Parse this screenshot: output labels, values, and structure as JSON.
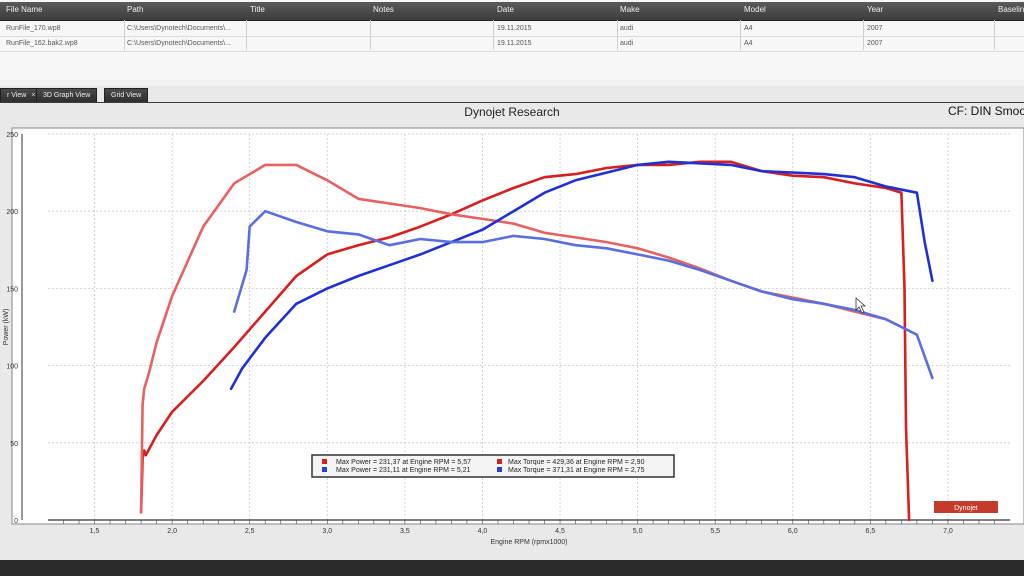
{
  "file_table": {
    "columns": [
      "File Name",
      "Path",
      "Title",
      "Notes",
      "Date",
      "Make",
      "Model",
      "Year",
      "Baseline"
    ],
    "rows": [
      [
        "RunFile_170.wp8",
        "C:\\Users\\Dynotech\\Documents\\...",
        "",
        "",
        "19.11.2015",
        "audi",
        "A4",
        "2007",
        ""
      ],
      [
        "RunFile_162.bak2.wp8",
        "C:\\Users\\Dynotech\\Documents\\...",
        "",
        "",
        "19.11.2015",
        "audi",
        "A4",
        "2007",
        ""
      ]
    ]
  },
  "tabs": [
    {
      "label": "r View",
      "active": true,
      "close": "×"
    },
    {
      "label": "3D Graph View",
      "active": false
    },
    {
      "label": "Grid View",
      "active": false
    }
  ],
  "graph": {
    "title": "Dynojet Research",
    "cf_label": "CF: DIN Smoo",
    "logo_text": "Dynojet"
  },
  "legend": [
    {
      "text": "Max Power = 231,37 at Engine RPM = 5,57",
      "color": "#d42020"
    },
    {
      "text": "Max Torque = 429,36 at Engine RPM = 2,90",
      "color": "#d42020"
    },
    {
      "text": "Max Power = 231,11 at Engine RPM = 5,21",
      "color": "#2c3fd8"
    },
    {
      "text": "Max Torque = 371,31 at Engine RPM = 2,75",
      "color": "#2c3fd8"
    }
  ],
  "chart_data": {
    "type": "line",
    "title": "Dynojet Research",
    "xlabel": "Engine RPM (rpmx1000)",
    "ylabel": "Power (kW)",
    "xlim": [
      1.2,
      7.4
    ],
    "ylim": [
      0,
      250
    ],
    "x_ticks": [
      "1,5",
      "2,0",
      "2,5",
      "3,0",
      "3,5",
      "4,0",
      "4,5",
      "5,0",
      "5,5",
      "6,0",
      "6,5",
      "7,0"
    ],
    "y_ticks": [
      "0",
      "50",
      "100",
      "150",
      "200",
      "250"
    ],
    "grid": true,
    "series": [
      {
        "color": "#d81e1e",
        "x": [
          1.8,
          1.81,
          1.82,
          1.83,
          1.9,
          2.0,
          2.2,
          2.4,
          2.6,
          2.8,
          3.0,
          3.2,
          3.4,
          3.6,
          3.8,
          4.0,
          4.2,
          4.4,
          4.6,
          4.8,
          5.0,
          5.2,
          5.4,
          5.6,
          5.8,
          6.0,
          6.2,
          6.4,
          6.6,
          6.7,
          6.72,
          6.73,
          6.75
        ],
        "y": [
          5,
          40,
          45,
          42,
          55,
          70,
          90,
          112,
          135,
          158,
          172,
          178,
          183,
          190,
          198,
          207,
          215,
          222,
          224,
          228,
          230,
          230,
          232,
          232,
          226,
          223,
          222,
          218,
          215,
          212,
          150,
          60,
          0
        ]
      },
      {
        "color": "#e86060",
        "x": [
          1.8,
          1.81,
          1.82,
          1.85,
          1.9,
          2.0,
          2.2,
          2.4,
          2.6,
          2.8,
          3.0,
          3.2,
          3.4,
          3.6,
          3.8,
          4.0,
          4.2,
          4.4,
          4.6,
          4.8,
          5.0,
          5.2,
          5.4,
          5.6,
          5.8,
          6.0,
          6.2,
          6.4,
          6.6,
          6.7
        ],
        "y": [
          5,
          75,
          85,
          95,
          115,
          145,
          190,
          218,
          230,
          230,
          220,
          208,
          205,
          202,
          198,
          195,
          192,
          186,
          183,
          180,
          176,
          170,
          163,
          155,
          148,
          144,
          140,
          135,
          130,
          125
        ]
      },
      {
        "color": "#1f30d6",
        "x": [
          2.38,
          2.45,
          2.6,
          2.8,
          3.0,
          3.2,
          3.4,
          3.6,
          3.8,
          4.0,
          4.2,
          4.4,
          4.6,
          4.8,
          5.0,
          5.2,
          5.4,
          5.6,
          5.8,
          6.0,
          6.2,
          6.4,
          6.6,
          6.8,
          6.85,
          6.9
        ],
        "y": [
          85,
          98,
          118,
          140,
          150,
          158,
          165,
          172,
          180,
          188,
          200,
          212,
          220,
          225,
          230,
          232,
          231,
          230,
          226,
          225,
          224,
          222,
          216,
          212,
          180,
          155
        ]
      },
      {
        "color": "#5b6ee0",
        "x": [
          2.4,
          2.48,
          2.5,
          2.6,
          2.8,
          3.0,
          3.2,
          3.4,
          3.6,
          3.8,
          4.0,
          4.2,
          4.4,
          4.6,
          4.8,
          5.0,
          5.2,
          5.4,
          5.6,
          5.8,
          6.0,
          6.2,
          6.4,
          6.6,
          6.8,
          6.9
        ],
        "y": [
          135,
          162,
          190,
          200,
          193,
          187,
          185,
          178,
          182,
          180,
          180,
          184,
          182,
          178,
          176,
          172,
          168,
          162,
          155,
          148,
          143,
          140,
          136,
          130,
          120,
          92
        ]
      }
    ]
  }
}
